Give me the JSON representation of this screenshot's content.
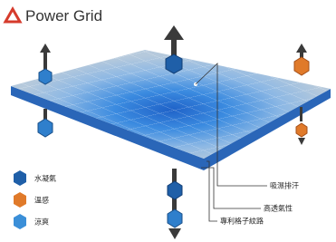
{
  "header": {
    "title": "Power Grid"
  },
  "legend": [
    {
      "label": "水凝氣"
    },
    {
      "label": "溫感"
    },
    {
      "label": "涼爽"
    }
  ],
  "callouts": [
    {
      "label": "吸濕排汗"
    },
    {
      "label": "高透氣性"
    },
    {
      "label": "專利格子紋路"
    }
  ]
}
